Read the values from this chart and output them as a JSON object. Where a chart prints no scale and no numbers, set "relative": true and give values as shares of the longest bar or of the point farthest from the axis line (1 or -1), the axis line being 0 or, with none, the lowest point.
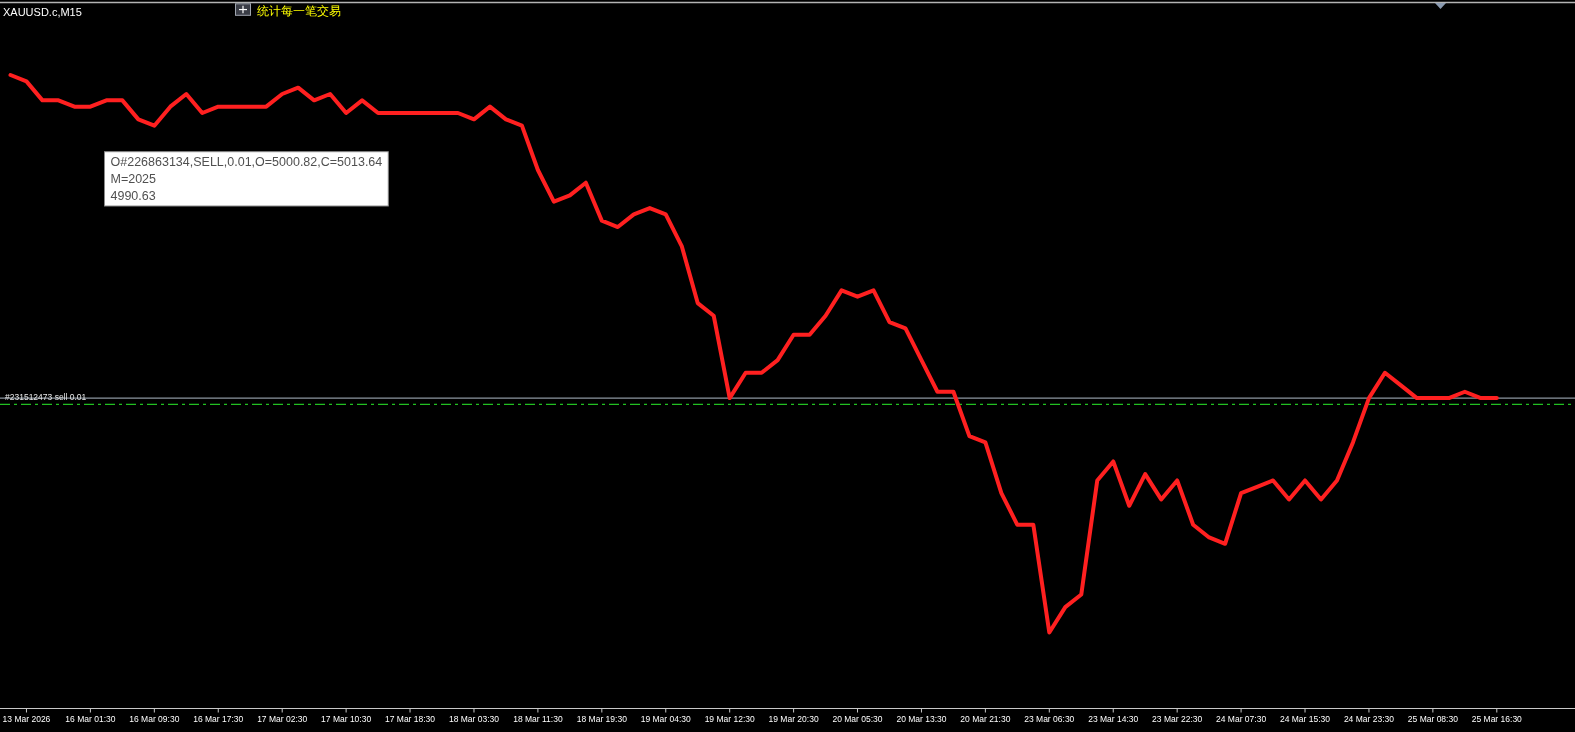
{
  "chart_data": {
    "type": "line",
    "title": "XAUUSD.c,M15",
    "subtitle": "统计每一笔交易",
    "relative": true,
    "categories": [
      null,
      "13 Mar 2026",
      null,
      null,
      null,
      "16 Mar 01:30",
      null,
      null,
      null,
      "16 Mar 09:30",
      null,
      null,
      null,
      "16 Mar 17:30",
      null,
      null,
      null,
      "17 Mar 02:30",
      null,
      null,
      null,
      "17 Mar 10:30",
      null,
      null,
      null,
      "17 Mar 18:30",
      null,
      null,
      null,
      "18 Mar 03:30",
      null,
      null,
      null,
      "18 Mar 11:30",
      null,
      null,
      null,
      "18 Mar 19:30",
      null,
      null,
      null,
      "19 Mar 04:30",
      null,
      null,
      null,
      "19 Mar 12:30",
      null,
      null,
      null,
      "19 Mar 20:30",
      null,
      null,
      null,
      "20 Mar 05:30",
      null,
      null,
      null,
      "20 Mar 13:30",
      null,
      null,
      null,
      "20 Mar 21:30",
      null,
      null,
      null,
      "23 Mar 06:30",
      null,
      null,
      null,
      "23 Mar 14:30",
      null,
      null,
      null,
      "23 Mar 22:30",
      null,
      null,
      null,
      "24 Mar 07:30",
      null,
      null,
      null,
      "24 Mar 15:30",
      null,
      null,
      null,
      "24 Mar 23:30",
      null,
      null,
      null,
      "25 Mar 08:30",
      null,
      null,
      null,
      "25 Mar 16:30"
    ],
    "series": [
      {
        "color": "#ff2020",
        "values": [
          1,
          0.99,
          0.96,
          0.96,
          0.95,
          0.95,
          0.96,
          0.96,
          0.93,
          0.92,
          0.95,
          0.97,
          0.94,
          0.95,
          0.95,
          0.95,
          0.95,
          0.97,
          0.98,
          0.96,
          0.97,
          0.94,
          0.96,
          0.94,
          0.94,
          0.94,
          0.94,
          0.94,
          0.94,
          0.93,
          0.95,
          0.93,
          0.92,
          0.85,
          0.8,
          0.81,
          0.83,
          0.77,
          0.76,
          0.78,
          0.79,
          0.78,
          0.73,
          0.64,
          0.62,
          0.49,
          0.53,
          0.53,
          0.55,
          0.59,
          0.59,
          0.62,
          0.66,
          0.65,
          0.66,
          0.61,
          0.6,
          0.55,
          0.5,
          0.5,
          0.43,
          0.42,
          0.34,
          0.29,
          0.29,
          0.12,
          0.16,
          0.18,
          0.36,
          0.39,
          0.32,
          0.37,
          0.33,
          0.36,
          0.29,
          0.27,
          0.26,
          0.34,
          0.35,
          0.36,
          0.33,
          0.36,
          0.33,
          0.36,
          0.42,
          0.49,
          0.53,
          0.51,
          0.49,
          0.49,
          0.49,
          0.5,
          0.49,
          0.49
        ]
      }
    ],
    "ref_lines": [
      {
        "axis": "y",
        "value": 0.49,
        "color": "#8c96a0",
        "line_style": "solid"
      },
      {
        "axis": "y",
        "value": 0.48,
        "label": "#231512473 sell 0.01",
        "color": "#22c022",
        "line_style": "dashed"
      }
    ],
    "annotations": [
      "O#226863134,SELL,0.01,O=5000.82,C=5013.64",
      "M=2025",
      "4990.63"
    ]
  }
}
